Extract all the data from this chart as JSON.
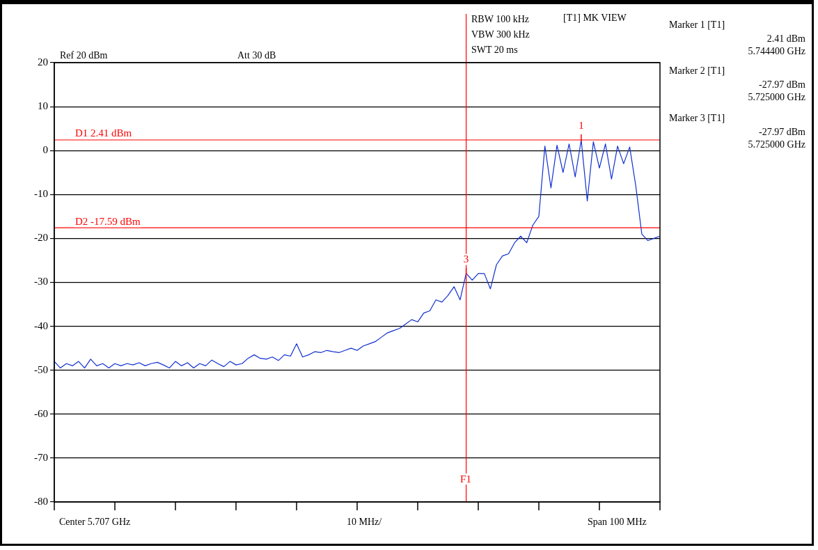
{
  "chart_data": {
    "type": "line",
    "categories": [
      null,
      null,
      null,
      null,
      null,
      null,
      null,
      null,
      null,
      null,
      null,
      null,
      null,
      null,
      null,
      null,
      null,
      null,
      null,
      null,
      null,
      null,
      null,
      null,
      null,
      null,
      null,
      null,
      null,
      null,
      null,
      null,
      null,
      null,
      null,
      null,
      null,
      null,
      null,
      null,
      null,
      null,
      null,
      null,
      null,
      null,
      null,
      null,
      null,
      null,
      null,
      null,
      null,
      null,
      null,
      null,
      null,
      null,
      null,
      null,
      null,
      null,
      null,
      null,
      null,
      null,
      null,
      null,
      null,
      null,
      null,
      null,
      null,
      null,
      null,
      null,
      null,
      null,
      null,
      null,
      null,
      null,
      null,
      null,
      null,
      null,
      null,
      null,
      null,
      null,
      null,
      null,
      null,
      null,
      null,
      null,
      null,
      null,
      null,
      null,
      null
    ],
    "series": [
      {
        "color": "#1030d0",
        "values": [
          -48,
          -49.5,
          -48.5,
          -49,
          -48,
          -49.5,
          -47.5,
          -49,
          -48.5,
          -49.5,
          -48.5,
          -49,
          -48.5,
          -48.8,
          -48.3,
          -49,
          -48.5,
          -48.2,
          -48.8,
          -49.5,
          -48,
          -49,
          -48.3,
          -49.5,
          -48.5,
          -49,
          -47.7,
          -48.5,
          -49.2,
          -48,
          -48.8,
          -48.5,
          -47.3,
          -46.5,
          -47.3,
          -47.5,
          -47,
          -47.8,
          -46.5,
          -46.8,
          -44,
          -47,
          -46.5,
          -45.8,
          -46,
          -45.5,
          -45.8,
          -46,
          -45.5,
          -45,
          -45.5,
          -44.5,
          -44,
          -43.5,
          -42.5,
          -41.5,
          -41,
          -40.5,
          -39.5,
          -38.5,
          -39,
          -37,
          -36.5,
          -34,
          -34.5,
          -33,
          -31,
          -34,
          -27.97,
          -29.5,
          -28,
          -28,
          -31.5,
          -26,
          -24,
          -23.5,
          -21,
          -19.5,
          -21,
          -17,
          -15,
          1,
          -8.5,
          1.2,
          -5,
          1.5,
          -6,
          2.41,
          -11.5,
          2,
          -4,
          1.5,
          -6.5,
          1,
          -3,
          0.8,
          -8,
          -19,
          -20.5,
          -20,
          -19.5
        ]
      }
    ],
    "ylim": [
      -80,
      20
    ],
    "yticks": [
      -80,
      -70,
      -60,
      -50,
      -40,
      -30,
      -20,
      -10,
      0,
      10,
      20
    ],
    "tick_labels": "y",
    "grid": "y",
    "legend": false,
    "marker": "none",
    "line_style": "solid",
    "ref_lines": [
      {
        "axis": "y",
        "value": 2.41,
        "label": "D1 2.41 dBm",
        "color": "#ff0000"
      },
      {
        "axis": "y",
        "value": -17.59,
        "label": "D2 -17.59 dBm",
        "color": "#ff0000"
      }
    ],
    "annotations": [
      "Ref 20 dBm",
      "Att 30 dB",
      "RBW 100 kHz",
      "VBW 300 kHz",
      "SWT 20 ms",
      "[T1] MK VIEW",
      "Marker 1 [T1]",
      "2.41 dBm",
      "5.744400 GHz",
      "Marker 2 [T1]",
      "-27.97 dBm",
      "5.725000 GHz",
      "Marker 3 [T1]",
      "-27.97 dBm",
      "5.725000 GHz",
      "Center 5.707 GHz",
      "10 MHz/",
      "Span 100 MHz",
      "F1",
      {
        "text": "1",
        "y": 2.41
      },
      {
        "text": "3",
        "y": -27.97
      }
    ]
  }
}
